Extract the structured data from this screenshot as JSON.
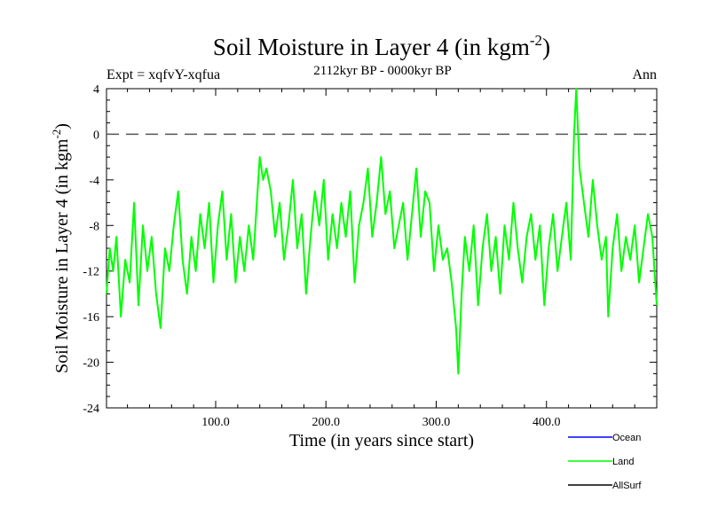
{
  "header": {
    "title_main": "Soil Moisture in Layer 4 (in kgm",
    "title_sup": "-2",
    "title_close": ")",
    "expt": "Expt = xqfvY-xqfua",
    "period": "2112kyr BP - 0000kyr BP",
    "season": "Ann"
  },
  "chart_data": {
    "type": "line",
    "title": "Soil Moisture in Layer 4 (in kgm-2)",
    "xlabel": "Time (in years since start)",
    "ylabel": "Soil Moisture in Layer 4 (in kgm-2)",
    "ylabel_main": "Soil Moisture in Layer 4 (in kgm",
    "ylabel_sup": "-2",
    "ylabel_close": ")",
    "xlim": [
      1,
      500
    ],
    "ylim": [
      -24,
      4
    ],
    "x_ticks": [
      100,
      200,
      300,
      400
    ],
    "x_tick_labels": [
      "100.0",
      "200.0",
      "300.0",
      "400.0"
    ],
    "y_ticks": [
      4,
      0,
      -4,
      -8,
      -12,
      -16,
      -20,
      -24
    ],
    "y_tick_labels": [
      "4",
      "0",
      "-4",
      "-8",
      "-12",
      "-16",
      "-20",
      "-24"
    ],
    "reference_line": 0,
    "legend": [
      {
        "name": "Ocean",
        "color": "#0000ff"
      },
      {
        "name": "Land",
        "color": "#00ff00"
      },
      {
        "name": "AllSurf",
        "color": "#000000"
      }
    ],
    "series": [
      {
        "name": "Land",
        "color": "#00ff00",
        "x": [
          1,
          4,
          7,
          10,
          14,
          18,
          22,
          26,
          30,
          34,
          38,
          42,
          46,
          50,
          54,
          58,
          62,
          66,
          70,
          74,
          78,
          82,
          86,
          90,
          94,
          98,
          102,
          106,
          110,
          114,
          118,
          122,
          126,
          130,
          134,
          138,
          140,
          143,
          146,
          150,
          154,
          158,
          162,
          166,
          170,
          174,
          178,
          182,
          186,
          190,
          194,
          198,
          202,
          206,
          210,
          214,
          218,
          222,
          226,
          230,
          234,
          238,
          242,
          246,
          250,
          254,
          258,
          262,
          266,
          270,
          274,
          278,
          282,
          286,
          290,
          294,
          298,
          302,
          306,
          310,
          314,
          318,
          320,
          323,
          326,
          330,
          334,
          338,
          342,
          346,
          350,
          354,
          358,
          362,
          366,
          370,
          374,
          378,
          382,
          386,
          390,
          394,
          398,
          402,
          406,
          410,
          414,
          418,
          422,
          425,
          427,
          430,
          434,
          438,
          442,
          446,
          450,
          454,
          456,
          460,
          464,
          468,
          472,
          476,
          480,
          484,
          488,
          492,
          496,
          500
        ],
        "values": [
          -14,
          -10,
          -12,
          -9,
          -16,
          -11,
          -13,
          -6,
          -15,
          -8,
          -12,
          -9,
          -14,
          -17,
          -10,
          -12,
          -8,
          -5,
          -11,
          -14,
          -9,
          -12,
          -7,
          -10,
          -6,
          -13,
          -8,
          -5,
          -11,
          -7,
          -13,
          -9,
          -12,
          -8,
          -11,
          -5,
          -2,
          -4,
          -3,
          -5,
          -9,
          -6,
          -11,
          -8,
          -4,
          -10,
          -7,
          -14,
          -9,
          -5,
          -8,
          -4,
          -11,
          -7,
          -10,
          -6,
          -9,
          -5,
          -13,
          -8,
          -6,
          -3,
          -9,
          -6,
          -2,
          -7,
          -5,
          -10,
          -8,
          -6,
          -11,
          -7,
          -3,
          -9,
          -5,
          -6,
          -12,
          -8,
          -11,
          -10,
          -13,
          -17,
          -21,
          -14,
          -9,
          -12,
          -8,
          -15,
          -10,
          -7,
          -12,
          -9,
          -14,
          -8,
          -11,
          -6,
          -10,
          -13,
          -9,
          -7,
          -11,
          -8,
          -15,
          -10,
          -7,
          -12,
          -9,
          -6,
          -11,
          0,
          4,
          -3,
          -6,
          -9,
          -4,
          -8,
          -11,
          -9,
          -16,
          -10,
          -7,
          -12,
          -9,
          -11,
          -8,
          -13,
          -10,
          -7,
          -9,
          -15
        ]
      }
    ]
  }
}
